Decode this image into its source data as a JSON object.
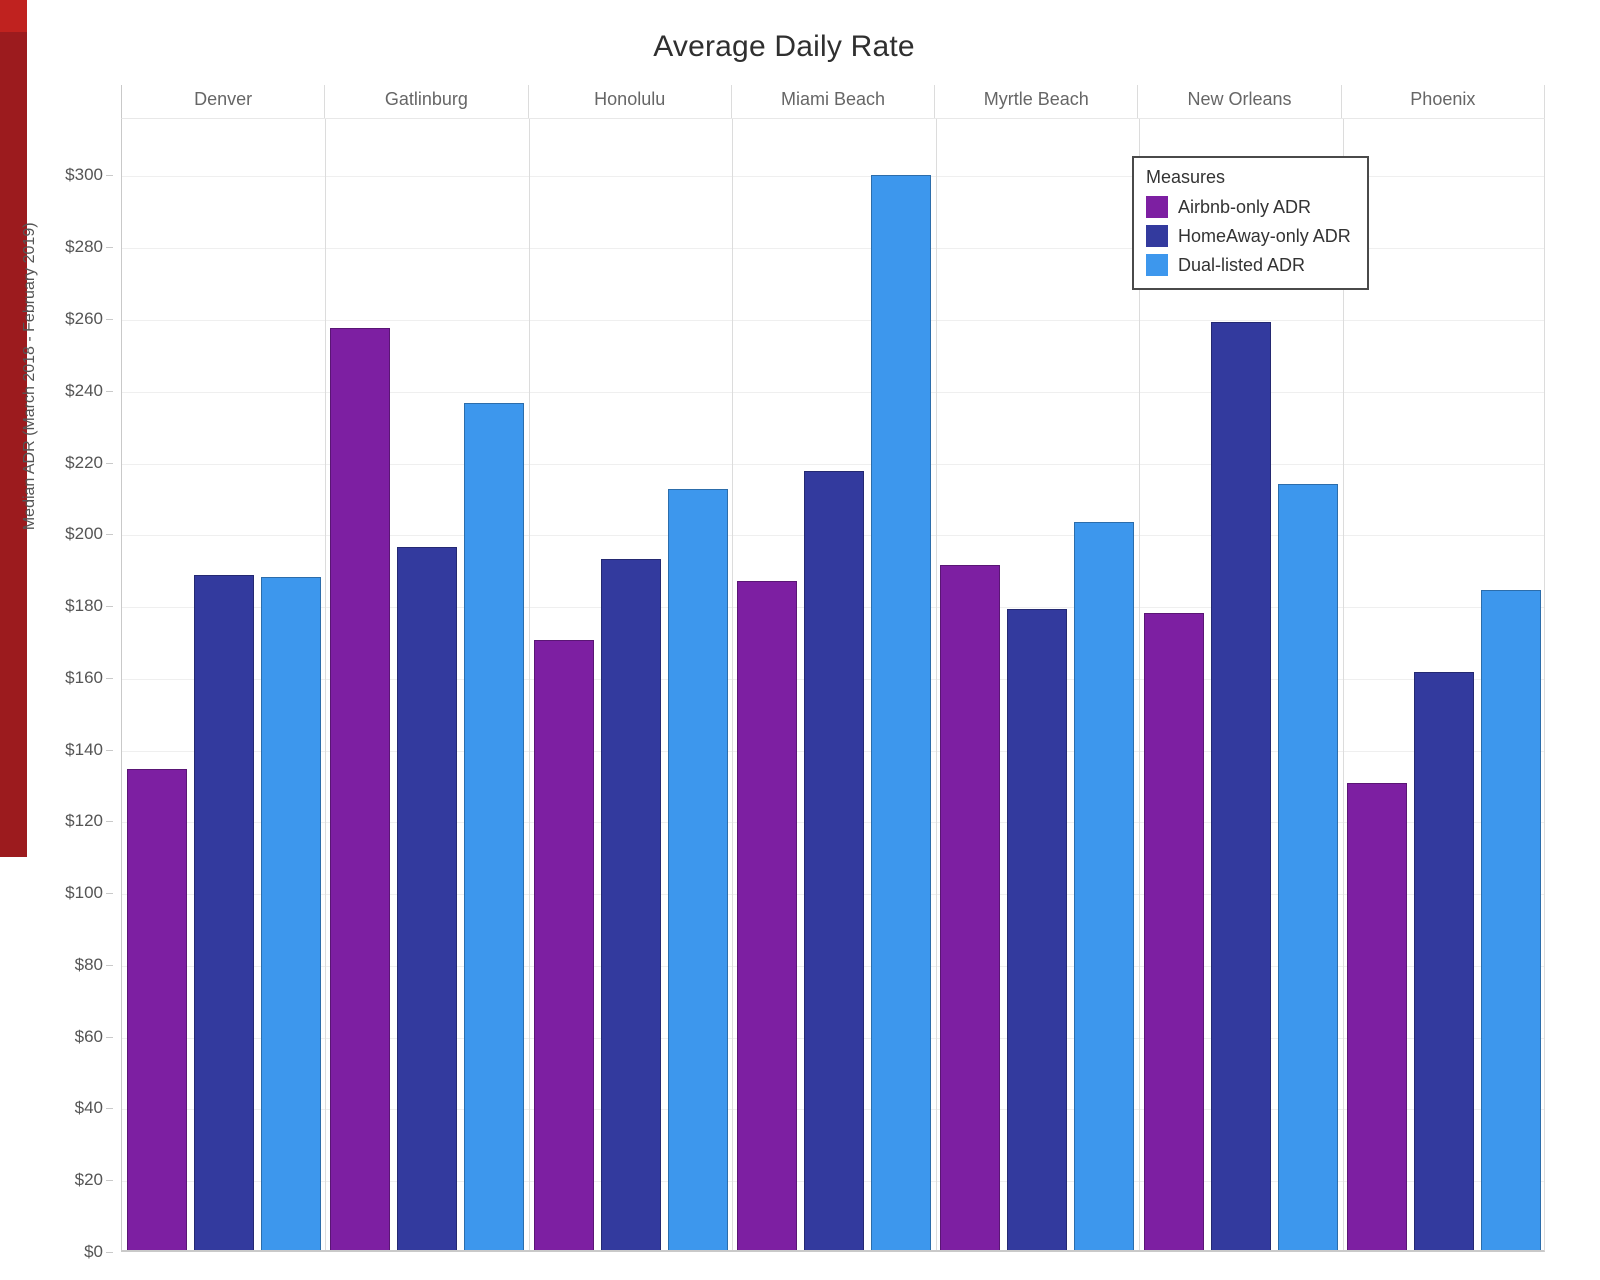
{
  "window": {
    "edge_strip_color": "#9c1b1e",
    "edge_strip_top_color": "#c0221f"
  },
  "chart_data": {
    "type": "bar",
    "title": "Average Daily Rate",
    "ylabel": "Median ADR (March 2018 - February 2019)",
    "categories": [
      "Denver",
      "Gatlinburg",
      "Honolulu",
      "Miami Beach",
      "Myrtle Beach",
      "New Orleans",
      "Phoenix"
    ],
    "series": [
      {
        "name": "Airbnb-only ADR",
        "color": "#7D1FA2",
        "values": [
          134.0,
          257.0,
          170.0,
          186.5,
          191.0,
          177.5,
          130.0
        ]
      },
      {
        "name": "HomeAway-only ADR",
        "color": "#333A9E",
        "values": [
          188.0,
          196.0,
          192.5,
          217.0,
          178.5,
          258.5,
          161.0
        ]
      },
      {
        "name": "Dual-listed ADR",
        "color": "#3D97ED",
        "values": [
          187.5,
          236.0,
          212.0,
          299.5,
          203.0,
          213.5,
          184.0
        ]
      }
    ],
    "y_axis": {
      "min": 0,
      "max": 316,
      "tick_step": 20,
      "tick_values": [
        0,
        20,
        40,
        60,
        80,
        100,
        120,
        140,
        160,
        180,
        200,
        220,
        240,
        260,
        280,
        300
      ],
      "tick_labels": [
        "$0",
        "$20",
        "$40",
        "$60",
        "$80",
        "$100",
        "$120",
        "$140",
        "$160",
        "$180",
        "$200",
        "$220",
        "$240",
        "$260",
        "$280",
        "$300"
      ]
    },
    "legend": {
      "title": "Measures",
      "position": "inner-top-right"
    },
    "grid": true
  }
}
